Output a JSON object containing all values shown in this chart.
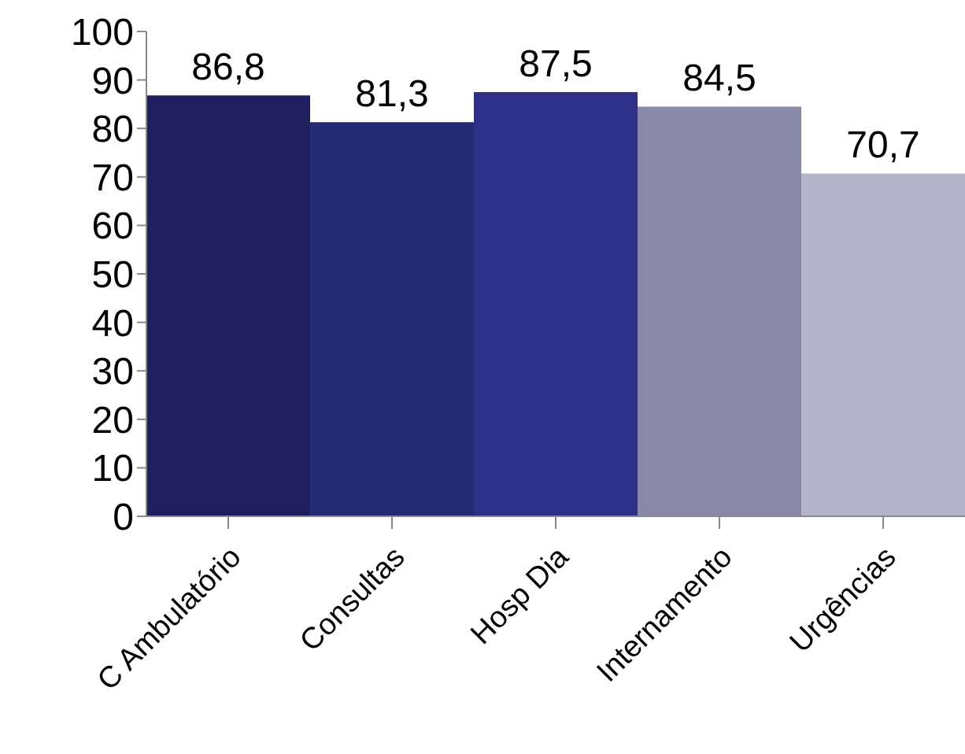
{
  "chart_data": {
    "type": "bar",
    "categories": [
      "C Ambulatório",
      "Consultas",
      "Hosp Dia",
      "Internamento",
      "Urgências"
    ],
    "values": [
      86.8,
      81.3,
      87.5,
      84.5,
      70.7
    ],
    "value_labels": [
      "86,8",
      "81,3",
      "87,5",
      "84,5",
      "70,7"
    ],
    "colors": [
      "#1f1f5f",
      "#262973",
      "#2e3088",
      "#8888a9",
      "#b4b4cc"
    ],
    "ylim": [
      0,
      100
    ],
    "yticks": [
      0,
      10,
      20,
      30,
      40,
      50,
      60,
      70,
      80,
      90,
      100
    ],
    "grid": false,
    "legend": false
  }
}
